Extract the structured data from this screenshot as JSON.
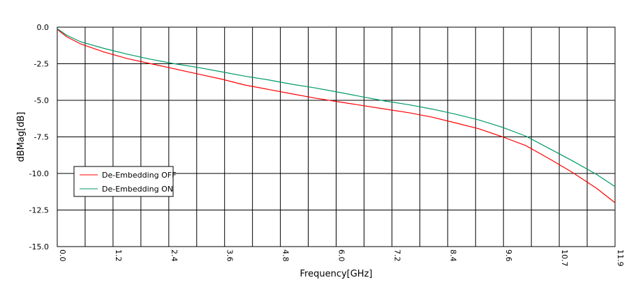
{
  "chart_data": {
    "type": "line",
    "xlabel": "Frequency[GHz]",
    "ylabel": "dBMag[dB]",
    "xlim": [
      0,
      11.9
    ],
    "ylim": [
      -15,
      0
    ],
    "grid": true,
    "legend_position": "bottom-left",
    "x_tick_labels": [
      "0.0",
      "1.2",
      "2.4",
      "3.6",
      "4.8",
      "6.0",
      "7.2",
      "8.4",
      "9.6",
      "10.7",
      "11.9"
    ],
    "x_tick_values": [
      0,
      1.19,
      2.38,
      3.57,
      4.76,
      5.95,
      7.14,
      8.33,
      9.52,
      10.71,
      11.9
    ],
    "x_gridlines": [
      0,
      0.595,
      1.19,
      1.785,
      2.38,
      2.975,
      3.57,
      4.165,
      4.76,
      5.355,
      5.95,
      6.545,
      7.14,
      7.735,
      8.33,
      8.925,
      9.52,
      10.115,
      10.71,
      11.305,
      11.9
    ],
    "y_tick_labels": [
      "0.0",
      "-2.5",
      "-5.0",
      "-7.5",
      "-10.0",
      "-12.5",
      "-15.0"
    ],
    "y_tick_values": [
      0,
      -2.5,
      -5,
      -7.5,
      -10,
      -12.5,
      -15
    ],
    "y_gridlines": [
      0,
      -2.5,
      -5,
      -7.5,
      -10,
      -12.5,
      -15
    ],
    "x": [
      0,
      0.2,
      0.5,
      1.0,
      1.5,
      2.0,
      2.5,
      3.0,
      3.5,
      4.0,
      4.5,
      5.0,
      5.5,
      6.0,
      6.5,
      7.0,
      7.5,
      8.0,
      8.5,
      9.0,
      9.5,
      10.0,
      10.5,
      11.0,
      11.5,
      11.9
    ],
    "series": [
      {
        "name": "De-Embedding OFF",
        "color": "#ff0000",
        "values": [
          -0.15,
          -0.65,
          -1.15,
          -1.7,
          -2.15,
          -2.5,
          -2.85,
          -3.2,
          -3.55,
          -3.95,
          -4.25,
          -4.55,
          -4.85,
          -5.1,
          -5.35,
          -5.6,
          -5.85,
          -6.15,
          -6.55,
          -6.95,
          -7.5,
          -8.1,
          -9.0,
          -9.95,
          -11.0,
          -12.0
        ]
      },
      {
        "name": "De-Embedding ON",
        "color": "#009966",
        "values": [
          -0.1,
          -0.55,
          -1.0,
          -1.45,
          -1.85,
          -2.2,
          -2.5,
          -2.75,
          -3.05,
          -3.35,
          -3.6,
          -3.9,
          -4.15,
          -4.45,
          -4.75,
          -5.05,
          -5.3,
          -5.6,
          -5.95,
          -6.35,
          -6.85,
          -7.45,
          -8.3,
          -9.15,
          -10.05,
          -10.9
        ]
      }
    ]
  }
}
